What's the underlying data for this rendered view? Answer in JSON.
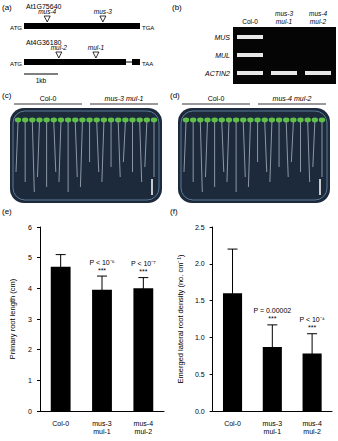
{
  "figure_parts": {
    "a": {
      "panel_label": "(a)",
      "genes": [
        {
          "name": "At1G75640",
          "start_codon": "ATG",
          "stop_codon": "TGA",
          "insertions": [
            "mus-4",
            "mus-3"
          ]
        },
        {
          "name": "At4G36180",
          "start_codon": "ATG",
          "stop_codon": "TAA",
          "insertions": [
            "mul-2",
            "mul-1"
          ]
        }
      ],
      "scale_bar": "1kb"
    },
    "b": {
      "panel_label": "(b)",
      "lanes": [
        "Col-0",
        "mus-3 mul-1",
        "mus-4 mul-2"
      ],
      "rows": [
        {
          "gene": "MUS",
          "bands": [
            true,
            false,
            false
          ]
        },
        {
          "gene": "MUL",
          "bands": [
            true,
            false,
            false
          ]
        },
        {
          "gene": "ACTIN2",
          "bands": [
            true,
            true,
            true
          ]
        }
      ]
    },
    "c": {
      "panel_label": "(c)",
      "genotypes": [
        "Col-0",
        "mus-3 mul-1"
      ]
    },
    "d": {
      "panel_label": "(d)",
      "genotypes": [
        "Col-0",
        "mus-4 mul-2"
      ]
    }
  },
  "chart_data": [
    {
      "type": "bar",
      "panel_label": "(e)",
      "y_label": "Primary root length (cm)",
      "categories": [
        "Col-0",
        "mus-3 mul-1",
        "mus-4 mul-2"
      ],
      "values": [
        4.7,
        3.95,
        4.0
      ],
      "errors": [
        0.4,
        0.45,
        0.35
      ],
      "color": "#000000",
      "ylim": [
        0,
        6
      ],
      "yticks": [
        0,
        1,
        2,
        3,
        4,
        5,
        6
      ],
      "grid": false,
      "annotations": [
        {
          "category": "mus-3 mul-1",
          "lines": [
            "P < 10⁻⁶",
            "***"
          ]
        },
        {
          "category": "mus-4 mul-2",
          "lines": [
            "P < 10⁻⁷",
            "***"
          ]
        }
      ]
    },
    {
      "type": "bar",
      "panel_label": "(f)",
      "y_label": "Emerged lateral root density (no. cm⁻¹)",
      "categories": [
        "Col-0",
        "mus-3 mul-1",
        "mus-4 mul-2"
      ],
      "values": [
        1.6,
        0.87,
        0.78
      ],
      "errors": [
        0.6,
        0.3,
        0.27
      ],
      "color": "#000000",
      "ylim": [
        0,
        2.5
      ],
      "yticks": [
        {
          "value": 0,
          "label": "0.0"
        },
        0.5,
        {
          "value": 1,
          "label": "1.0"
        },
        1.5,
        {
          "value": 2,
          "label": "2.0"
        },
        2.5
      ],
      "grid": false,
      "annotations": [
        {
          "category": "mus-3 mul-1",
          "lines": [
            "P = 0.00002",
            "***"
          ]
        },
        {
          "category": "mus-4 mul-2",
          "lines": [
            "P < 10⁻⁴",
            "***"
          ]
        }
      ]
    }
  ]
}
